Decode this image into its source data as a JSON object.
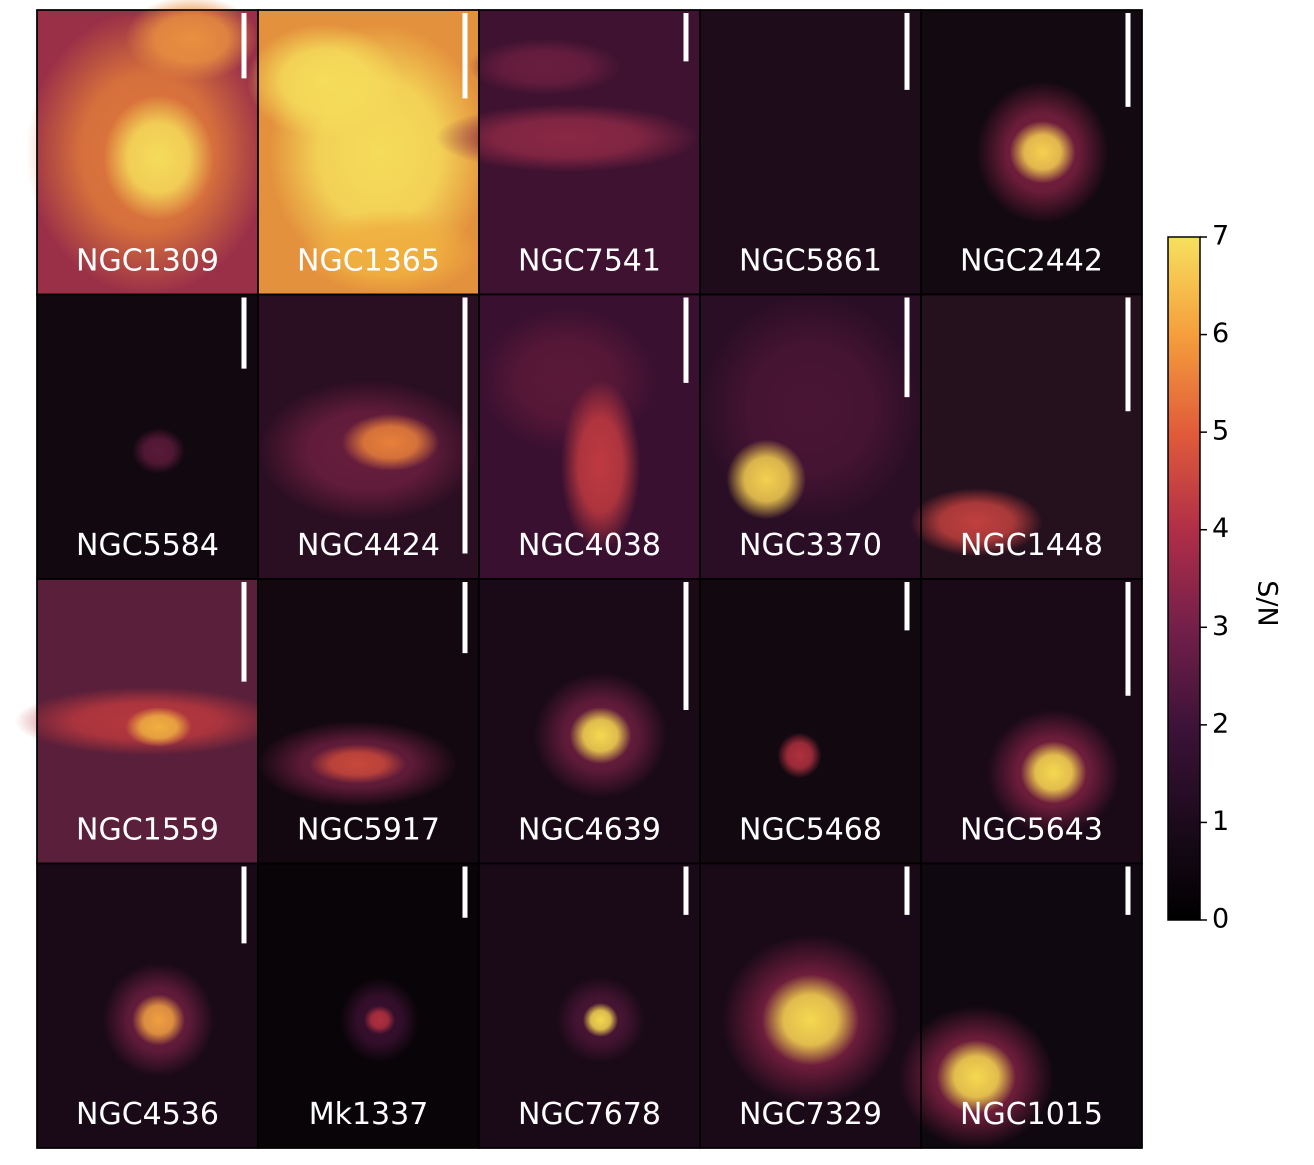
{
  "chart_data": {
    "type": "image-grid",
    "panels": [
      "NGC1309",
      "NGC1365",
      "NGC7541",
      "NGC5861",
      "NGC2442",
      "NGC5584",
      "NGC4424",
      "NGC4038",
      "NGC3370",
      "NGC1448",
      "NGC1559",
      "NGC5917",
      "NGC4639",
      "NGC5468",
      "NGC5643",
      "NGC4536",
      "Mk1337",
      "NGC7678",
      "NGC7329",
      "NGC1015"
    ],
    "columns": 5,
    "colorbar": {
      "label": "S/N",
      "lim": [
        0,
        7
      ],
      "ticks": [
        0,
        1,
        2,
        3,
        4,
        5,
        6,
        7
      ]
    }
  }
}
